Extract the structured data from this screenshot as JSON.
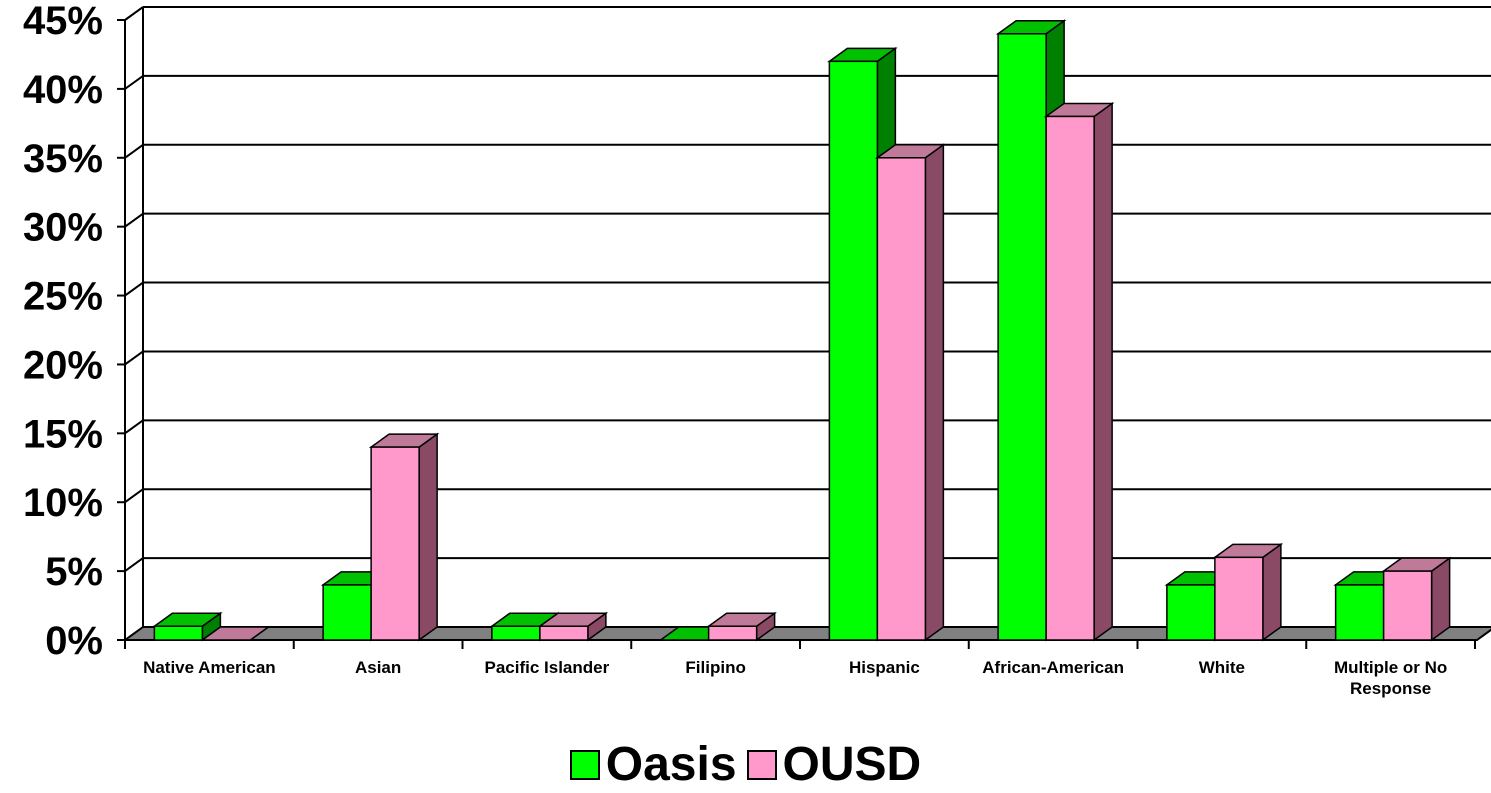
{
  "chart_data": {
    "type": "bar",
    "categories": [
      "Native American",
      "Asian",
      "Pacific Islander",
      "Filipino",
      "Hispanic",
      "African-American",
      "White",
      "Multiple or No Response"
    ],
    "series": [
      {
        "name": "Oasis",
        "values": [
          1,
          4,
          1,
          0,
          42,
          44,
          4,
          4
        ]
      },
      {
        "name": "OUSD",
        "values": [
          0,
          14,
          1,
          1,
          35,
          38,
          6,
          5
        ]
      }
    ],
    "ylim": [
      0,
      45
    ],
    "yticks": [
      "0%",
      "5%",
      "10%",
      "15%",
      "20%",
      "25%",
      "30%",
      "35%",
      "40%",
      "45%"
    ],
    "grid": true,
    "legend_position": "bottom",
    "colors": {
      "Oasis": {
        "front": "#00ff00",
        "side": "#008000",
        "top": "#00c000"
      },
      "OUSD": {
        "front": "#ff99cc",
        "side": "#8a4a66",
        "top": "#c07a99"
      },
      "floor": "#808080"
    }
  }
}
